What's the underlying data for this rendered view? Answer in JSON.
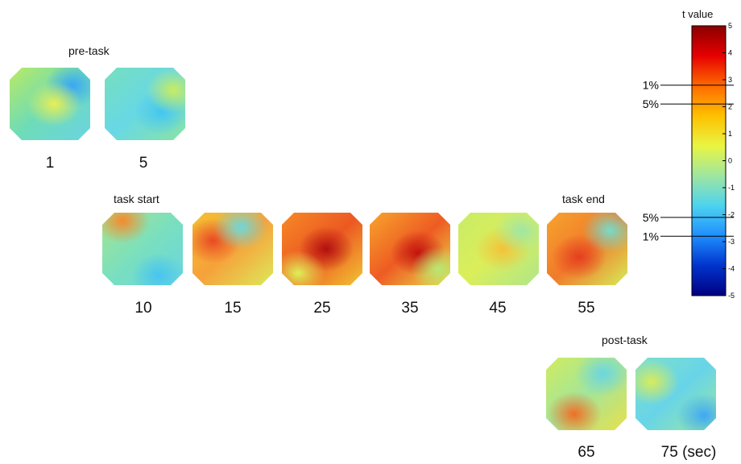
{
  "groups": {
    "pre_task": "pre-task",
    "task_start": "task start",
    "task_end": "task end",
    "post_task": "post-task"
  },
  "maps": [
    {
      "id": "1",
      "label": "1",
      "colors": [
        "#b9ea62",
        "#6fdcb6",
        "#6ad4e3"
      ],
      "blobs": [
        {
          "c": "#3aa7f3",
          "pos": "a"
        },
        {
          "c": "#e8ee55",
          "pos": "c"
        }
      ]
    },
    {
      "id": "5",
      "label": "5",
      "colors": [
        "#77dfbe",
        "#68d8e4",
        "#8ae3a4"
      ],
      "blobs": [
        {
          "c": "#44c6f2",
          "pos": "e"
        },
        {
          "c": "#c8ec62",
          "pos": "b"
        }
      ]
    },
    {
      "id": "10",
      "label": "10",
      "colors": [
        "#a5e58d",
        "#7adfbf",
        "#6ad6de"
      ],
      "blobs": [
        {
          "c": "#f58a2c",
          "pos": "f"
        },
        {
          "c": "#47c5f0",
          "pos": "g"
        }
      ]
    },
    {
      "id": "15",
      "label": "15",
      "colors": [
        "#f4c232",
        "#f6a13a",
        "#dde95a"
      ],
      "blobs": [
        {
          "c": "#e94a23",
          "pos": "h"
        },
        {
          "c": "#6ed7da",
          "pos": "i"
        }
      ]
    },
    {
      "id": "25",
      "label": "25",
      "colors": [
        "#f68a26",
        "#ec5822",
        "#f2c533"
      ],
      "blobs": [
        {
          "c": "#b3100f",
          "pos": "c"
        },
        {
          "c": "#dff057",
          "pos": "j"
        }
      ]
    },
    {
      "id": "35",
      "label": "35",
      "colors": [
        "#f7a52c",
        "#ee5b23",
        "#e9e04a"
      ],
      "blobs": [
        {
          "c": "#c1120e",
          "pos": "k"
        },
        {
          "c": "#b9e772",
          "pos": "l"
        }
      ]
    },
    {
      "id": "45",
      "label": "45",
      "colors": [
        "#c8ec66",
        "#dbee5a",
        "#aee68b"
      ],
      "blobs": [
        {
          "c": "#f3c23a",
          "pos": "c"
        },
        {
          "c": "#9fe6a6",
          "pos": "a"
        }
      ]
    },
    {
      "id": "55",
      "label": "55",
      "colors": [
        "#f6a42e",
        "#f17a2a",
        "#d6ec58"
      ],
      "blobs": [
        {
          "c": "#e53f1f",
          "pos": "m"
        },
        {
          "c": "#77dcca",
          "pos": "a"
        }
      ]
    },
    {
      "id": "65",
      "label": "65",
      "colors": [
        "#d0ec5f",
        "#a3e59a",
        "#e9e04b"
      ],
      "blobs": [
        {
          "c": "#f06e24",
          "pos": "n"
        },
        {
          "c": "#6cd6e0",
          "pos": "o"
        }
      ]
    },
    {
      "id": "75",
      "label": "75 (sec)",
      "colors": [
        "#7fe0c9",
        "#68d4e8",
        "#9be7a1"
      ],
      "blobs": [
        {
          "c": "#3fa8f4",
          "pos": "p"
        },
        {
          "c": "#d8ec5b",
          "pos": "q"
        }
      ]
    }
  ],
  "colorbar": {
    "title": "t value",
    "ticks": [
      "5",
      "4",
      "3",
      "2",
      "1",
      "0",
      "-1",
      "-2",
      "-3",
      "-4",
      "-5"
    ],
    "thresholds": [
      {
        "label": "1%",
        "value": 2.8
      },
      {
        "label": "5%",
        "value": 2.1
      },
      {
        "label": "5%",
        "value": -2.1
      },
      {
        "label": "1%",
        "value": -2.8
      }
    ],
    "colors": [
      "#8b0000",
      "#e60000",
      "#ff6a00",
      "#ffc000",
      "#e9f542",
      "#9fe6a0",
      "#4dd3ef",
      "#1f8fff",
      "#0033cc",
      "#000080"
    ]
  }
}
